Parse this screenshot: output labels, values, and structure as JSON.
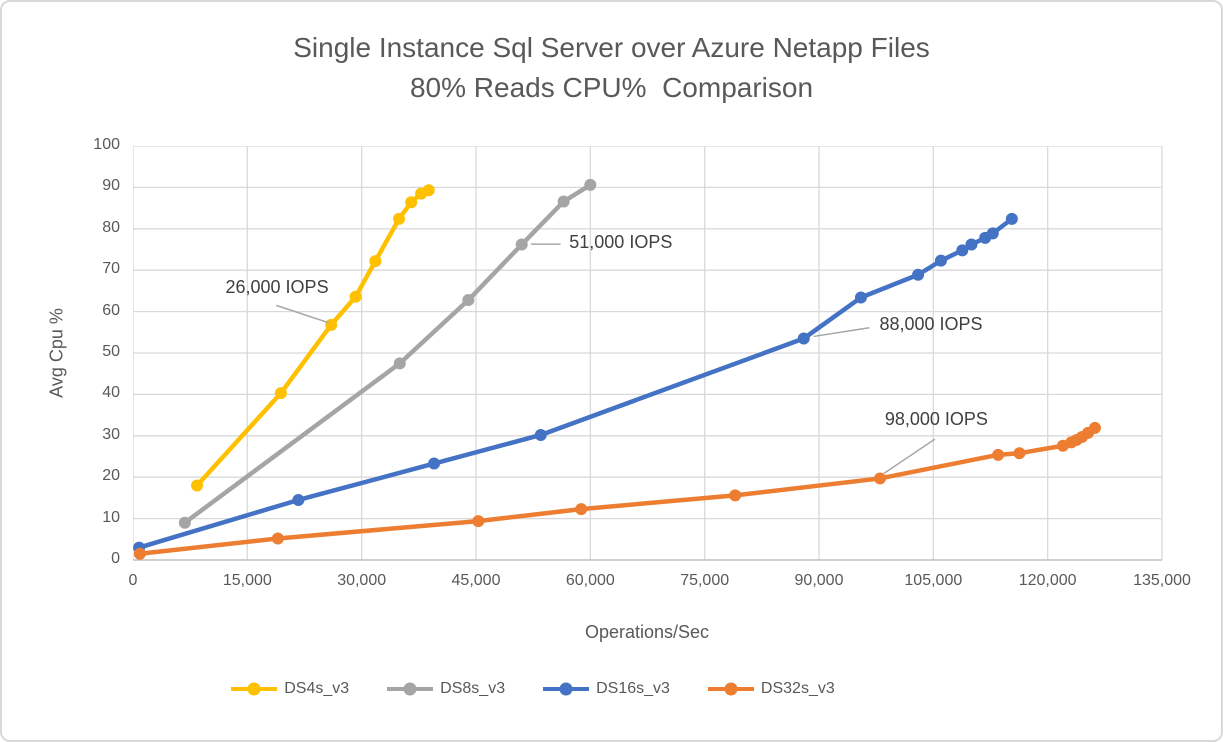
{
  "window": {
    "background": "#ffffff",
    "border_color": "#d9d9d9"
  },
  "styles": {
    "grid_color": "#d9d9d9",
    "axis_line_color": "#bfbfbf",
    "tick_text_color": "#595959",
    "title_color": "#595959",
    "annotation_text_color": "#404040",
    "leader_line_color": "#a6a6a6"
  },
  "chart_data": {
    "type": "line",
    "title_lines": [
      "Single Instance Sql Server over Azure Netapp Files",
      "80% Reads CPU%  Comparison"
    ],
    "xlabel": "Operations/Sec",
    "ylabel": "Avg Cpu %",
    "xlim": [
      0,
      135000
    ],
    "ylim": [
      0,
      100
    ],
    "grid": true,
    "x_ticks": [
      {
        "value": 0,
        "label": "0"
      },
      {
        "value": 15000,
        "label": "15,000"
      },
      {
        "value": 30000,
        "label": "30,000"
      },
      {
        "value": 45000,
        "label": "45,000"
      },
      {
        "value": 60000,
        "label": "60,000"
      },
      {
        "value": 75000,
        "label": "75,000"
      },
      {
        "value": 90000,
        "label": "90,000"
      },
      {
        "value": 105000,
        "label": "105,000"
      },
      {
        "value": 120000,
        "label": "120,000"
      },
      {
        "value": 135000,
        "label": "135,000"
      }
    ],
    "y_ticks": [
      {
        "value": 0,
        "label": "0"
      },
      {
        "value": 10,
        "label": "10"
      },
      {
        "value": 20,
        "label": "20"
      },
      {
        "value": 30,
        "label": "30"
      },
      {
        "value": 40,
        "label": "40"
      },
      {
        "value": 50,
        "label": "50"
      },
      {
        "value": 60,
        "label": "60"
      },
      {
        "value": 70,
        "label": "70"
      },
      {
        "value": 80,
        "label": "80"
      },
      {
        "value": 90,
        "label": "90"
      },
      {
        "value": 100,
        "label": "100"
      }
    ],
    "legend_position": "bottom",
    "series": [
      {
        "name": "DS4s_v3",
        "color": "#FFC000",
        "points": [
          [
            8400,
            18
          ],
          [
            19400,
            40.3
          ],
          [
            26000,
            56.8
          ],
          [
            29200,
            63.6
          ],
          [
            31800,
            72.2
          ],
          [
            34900,
            82.4
          ],
          [
            36500,
            86.4
          ],
          [
            37800,
            88.5
          ],
          [
            38800,
            89.3
          ]
        ]
      },
      {
        "name": "DS8s_v3",
        "color": "#A5A5A5",
        "points": [
          [
            6800,
            9
          ],
          [
            35000,
            47.5
          ],
          [
            44000,
            62.8
          ],
          [
            51000,
            76.2
          ],
          [
            56500,
            86.6
          ],
          [
            60000,
            90.6
          ]
        ]
      },
      {
        "name": "DS16s_v3",
        "color": "#4472C4",
        "points": [
          [
            800,
            3
          ],
          [
            21700,
            14.5
          ],
          [
            39500,
            23.3
          ],
          [
            53500,
            30.2
          ],
          [
            88000,
            53.5
          ],
          [
            95500,
            63.4
          ],
          [
            103000,
            68.9
          ],
          [
            106000,
            72.3
          ],
          [
            108800,
            74.8
          ],
          [
            110000,
            76.2
          ],
          [
            111800,
            77.8
          ],
          [
            112800,
            78.9
          ],
          [
            115300,
            82.4
          ]
        ]
      },
      {
        "name": "DS32s_v3",
        "color": "#ED7D31",
        "points": [
          [
            900,
            1.5
          ],
          [
            19000,
            5.2
          ],
          [
            45300,
            9.4
          ],
          [
            58800,
            12.3
          ],
          [
            79000,
            15.6
          ],
          [
            98000,
            19.7
          ],
          [
            113500,
            25.4
          ],
          [
            116300,
            25.8
          ],
          [
            122000,
            27.6
          ],
          [
            123100,
            28.4
          ],
          [
            123800,
            29.0
          ],
          [
            124500,
            29.7
          ],
          [
            125300,
            30.7
          ],
          [
            126200,
            31.9
          ]
        ]
      }
    ],
    "annotations": [
      {
        "text": "26,000 IOPS",
        "text_pos": [
          18900,
          65.8
        ],
        "leader": [
          [
            18800,
            61.5
          ],
          [
            25700,
            57.3
          ]
        ]
      },
      {
        "text": "51,000 IOPS",
        "text_pos": [
          64000,
          76.6
        ],
        "leader": [
          [
            56100,
            76.3
          ],
          [
            52200,
            76.3
          ]
        ]
      },
      {
        "text": "88,000 IOPS",
        "text_pos": [
          104700,
          56.8
        ],
        "leader": [
          [
            96600,
            56.1
          ],
          [
            89300,
            54.0
          ]
        ]
      },
      {
        "text": "98,000 IOPS",
        "text_pos": [
          105400,
          33.8
        ],
        "leader": [
          [
            105200,
            29.2
          ],
          [
            98500,
            20.9
          ]
        ]
      }
    ]
  }
}
